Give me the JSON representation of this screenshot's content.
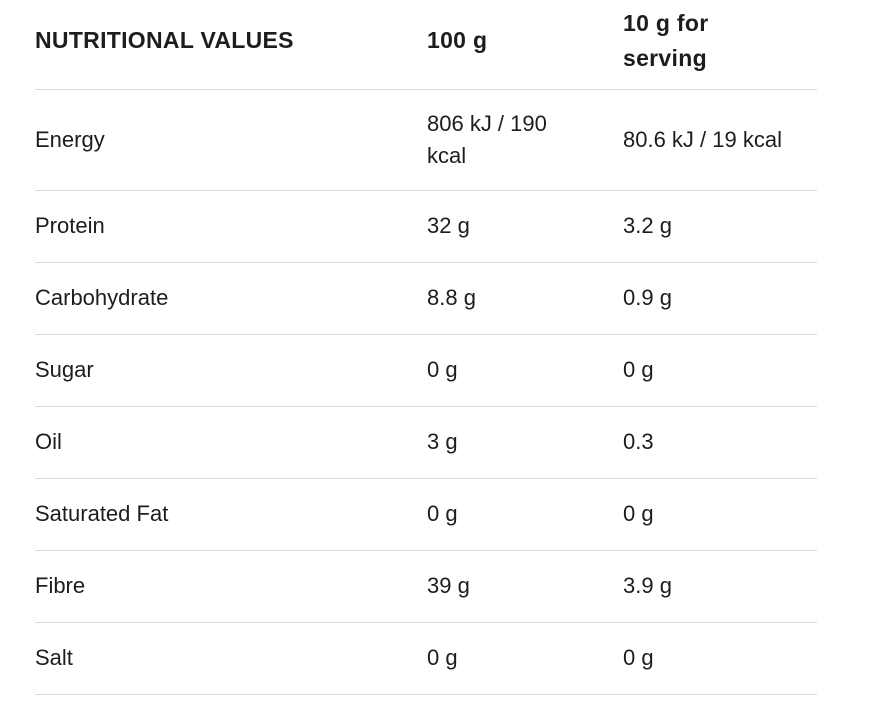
{
  "colors": {
    "text": "#1d1d1d",
    "divider": "#d9d9d9",
    "background": "#ffffff"
  },
  "table": {
    "header": {
      "label": "NUTRITIONAL VALUES",
      "col_100g": "100 g",
      "col_serving": "10 g for serving"
    },
    "rows": [
      {
        "name": "Energy",
        "per_100g": "806 kJ / 190 kcal",
        "per_serving": "80.6 kJ / 19 kcal"
      },
      {
        "name": "Protein",
        "per_100g": "32 g",
        "per_serving": "3.2 g"
      },
      {
        "name": "Carbohydrate",
        "per_100g": "8.8 g",
        "per_serving": "0.9 g"
      },
      {
        "name": "Sugar",
        "per_100g": "0 g",
        "per_serving": "0 g"
      },
      {
        "name": "Oil",
        "per_100g": "3 g",
        "per_serving": "0.3"
      },
      {
        "name": "Saturated Fat",
        "per_100g": "0 g",
        "per_serving": "0 g"
      },
      {
        "name": "Fibre",
        "per_100g": "39 g",
        "per_serving": "3.9 g"
      },
      {
        "name": "Salt",
        "per_100g": "0 g",
        "per_serving": "0 g"
      }
    ]
  }
}
